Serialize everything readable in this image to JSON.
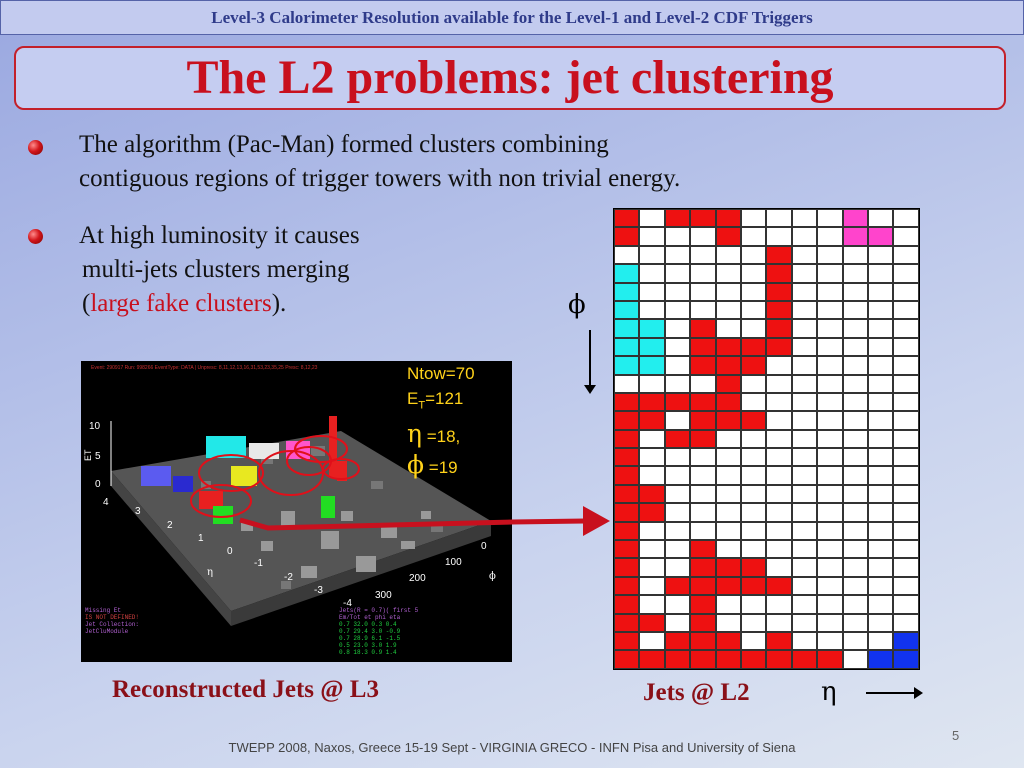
{
  "header": "Level-3 Calorimeter Resolution available for the Level-1 and Level-2 CDF Triggers",
  "title": "The L2 problems: jet clustering",
  "bullets": [
    {
      "line1": "The algorithm (Pac-Man) formed clusters combining",
      "line2": "contiguous regions of trigger towers  with non trivial energy."
    },
    {
      "line1": "At high luminosity it causes",
      "line2": "multi-jets clusters merging",
      "line3_pre": "(",
      "line3_red": "large fake clusters",
      "line3_post": ")."
    }
  ],
  "phi_symbol": "ϕ",
  "eta_symbol": "η",
  "plot": {
    "ntow": "Ntow=70",
    "et_label": "E",
    "et_sub": "T",
    "et_value": "=121",
    "eta_value": " =18,",
    "phi_value": " =19",
    "event_header": "Event: 290917  Run: 998266  EventType: DATA | Unpresc: 8,11,12,13,16,31,53,23,35,25 Presc: 8,12,23",
    "yaxis_label": "ET",
    "yticks": [
      "10",
      "5",
      "0"
    ],
    "eta_ticks": [
      "4",
      "3",
      "2",
      "1",
      "0",
      "-1",
      "-2",
      "-3",
      "-4"
    ],
    "eta_axis": "η",
    "phi_ticks": [
      "0",
      "100",
      "200",
      "300"
    ],
    "phi_axis": "ϕ",
    "bottom_left": [
      "Missing Et",
      "IS NOT DEFINED!",
      "Jet Collection:",
      "JetCluModule"
    ],
    "table_header": [
      "Jets(R = 0.7)( first 5",
      "Em/Tot   et    phi   eta"
    ],
    "table_rows": [
      "0.7    32.0  0.3  0.4",
      "0.7    29.4  3.0 -0.9",
      "0.7    28.9  6.1 -1.5",
      "0.5    23.0  3.0  1.9",
      "0.8    18.3  0.9  1.4"
    ]
  },
  "caption_left": "Reconstructed Jets @ L3",
  "caption_right": "Jets @ L2",
  "footer": "TWEPP 2008, Naxos, Greece 15-19 Sept - VIRGINIA GRECO - INFN Pisa and University of Siena",
  "page_number": "5",
  "colors": {
    "red_cell": "#ee1111",
    "cyan_cell": "#22eeee",
    "magenta_cell": "#ff44cc",
    "blue_cell": "#1133ee",
    "white_cell": "#ffffff"
  },
  "tower_grid": {
    "legend": {
      "W": "white",
      "R": "red",
      "C": "cyan",
      "M": "magenta",
      "B": "blue"
    },
    "rows": [
      "RWRRRWWWWMWW",
      "RWWWRWWWWMMW",
      "WWWWWWRWWWWW",
      "CWWWWWRWWWWW",
      "CWWWWWRWWWWW",
      "CWWWWWRWWWWW",
      "CCWRWWRWWWWW",
      "CCWRRRRWWWWW",
      "CCWRRRWWWWWW",
      "WWWWRWWWWWWW",
      "RRRRRWWWWWWW",
      "RRWRRRWWWWWW",
      "RWRRWWWWWWWW",
      "RWWWWWWWWWWW",
      "RWWWWWWWWWWW",
      "RRWWWWWWWWWW",
      "RRWWWWWWWWWW",
      "RWWWWWWWWWWW",
      "RWWRWWWWWWWW",
      "RWWRRRWWWWWW",
      "RWRRRRRWWWWW",
      "RWWRWWWWWWWW",
      "RRWRWWWWWWWW",
      "RWRRRWRWWWWB",
      "RRRRRRRRRWBB"
    ]
  }
}
